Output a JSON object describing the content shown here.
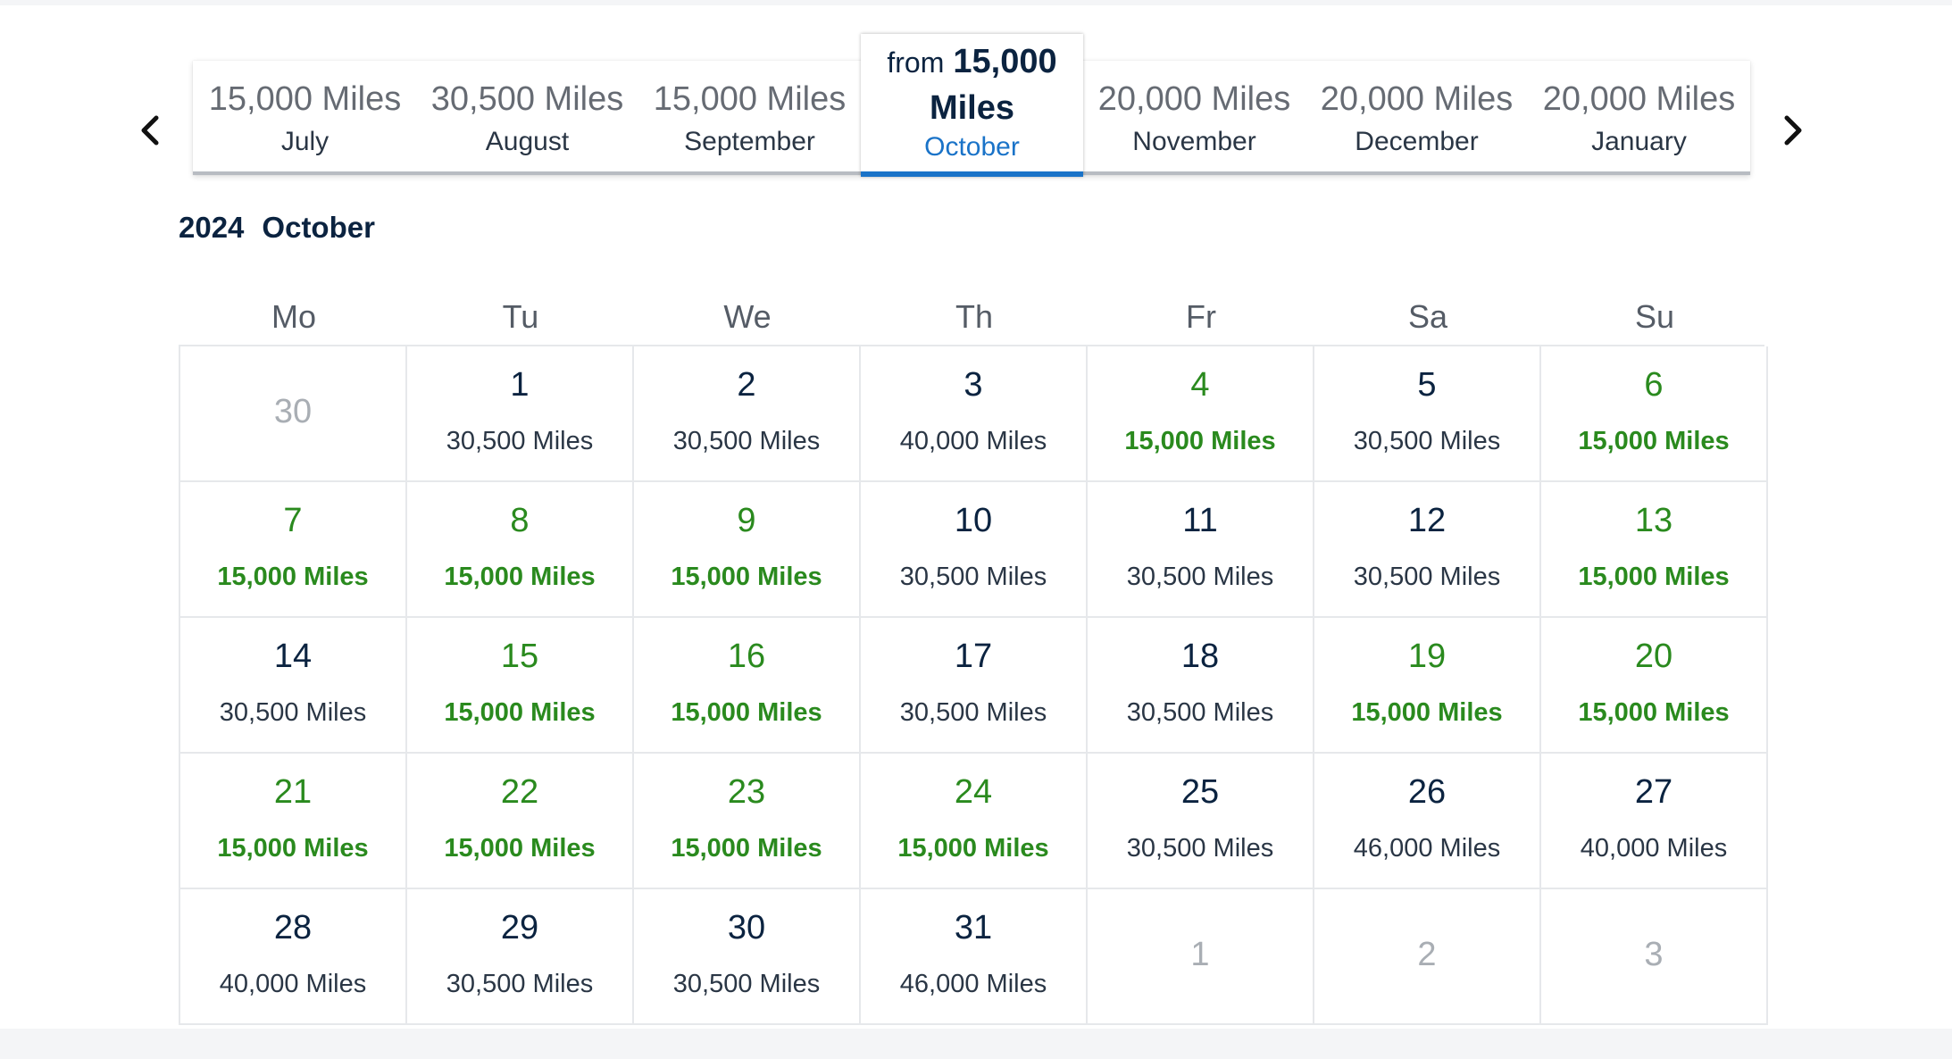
{
  "navigation": {
    "prev_icon": "chevron-left-icon",
    "next_icon": "chevron-right-icon"
  },
  "month_tabs": [
    {
      "miles": "15,000 Miles",
      "month": "July"
    },
    {
      "miles": "30,500 Miles",
      "month": "August"
    },
    {
      "miles": "15,000 Miles",
      "month": "September"
    },
    {
      "from": "from",
      "amount": "15,000",
      "unit": "Miles",
      "month": "October",
      "active": true
    },
    {
      "miles": "20,000 Miles",
      "month": "November"
    },
    {
      "miles": "20,000 Miles",
      "month": "December"
    },
    {
      "miles": "20,000 Miles",
      "month": "January"
    }
  ],
  "calendar": {
    "year": "2024",
    "month": "October",
    "weekdays": [
      "Mo",
      "Tu",
      "We",
      "Th",
      "Fr",
      "Sa",
      "Su"
    ],
    "colors": {
      "lowest_fare": "#2a8a1e",
      "active_tab": "#1a73c8",
      "text": "#0b2340",
      "outside_day": "#a9aeb4"
    },
    "cells": [
      {
        "day": "30",
        "outside": true
      },
      {
        "day": "1",
        "miles": "30,500 Miles"
      },
      {
        "day": "2",
        "miles": "30,500 Miles"
      },
      {
        "day": "3",
        "miles": "40,000 Miles"
      },
      {
        "day": "4",
        "miles": "15,000 Miles",
        "low": true
      },
      {
        "day": "5",
        "miles": "30,500 Miles"
      },
      {
        "day": "6",
        "miles": "15,000 Miles",
        "low": true
      },
      {
        "day": "7",
        "miles": "15,000 Miles",
        "low": true
      },
      {
        "day": "8",
        "miles": "15,000 Miles",
        "low": true
      },
      {
        "day": "9",
        "miles": "15,000 Miles",
        "low": true
      },
      {
        "day": "10",
        "miles": "30,500 Miles"
      },
      {
        "day": "11",
        "miles": "30,500 Miles"
      },
      {
        "day": "12",
        "miles": "30,500 Miles"
      },
      {
        "day": "13",
        "miles": "15,000 Miles",
        "low": true
      },
      {
        "day": "14",
        "miles": "30,500 Miles"
      },
      {
        "day": "15",
        "miles": "15,000 Miles",
        "low": true
      },
      {
        "day": "16",
        "miles": "15,000 Miles",
        "low": true
      },
      {
        "day": "17",
        "miles": "30,500 Miles"
      },
      {
        "day": "18",
        "miles": "30,500 Miles"
      },
      {
        "day": "19",
        "miles": "15,000 Miles",
        "low": true
      },
      {
        "day": "20",
        "miles": "15,000 Miles",
        "low": true
      },
      {
        "day": "21",
        "miles": "15,000 Miles",
        "low": true
      },
      {
        "day": "22",
        "miles": "15,000 Miles",
        "low": true
      },
      {
        "day": "23",
        "miles": "15,000 Miles",
        "low": true
      },
      {
        "day": "24",
        "miles": "15,000 Miles",
        "low": true
      },
      {
        "day": "25",
        "miles": "30,500 Miles"
      },
      {
        "day": "26",
        "miles": "46,000 Miles"
      },
      {
        "day": "27",
        "miles": "40,000 Miles"
      },
      {
        "day": "28",
        "miles": "40,000 Miles"
      },
      {
        "day": "29",
        "miles": "30,500 Miles"
      },
      {
        "day": "30",
        "miles": "30,500 Miles"
      },
      {
        "day": "31",
        "miles": "46,000 Miles"
      },
      {
        "day": "1",
        "outside": true
      },
      {
        "day": "2",
        "outside": true
      },
      {
        "day": "3",
        "outside": true
      }
    ]
  }
}
